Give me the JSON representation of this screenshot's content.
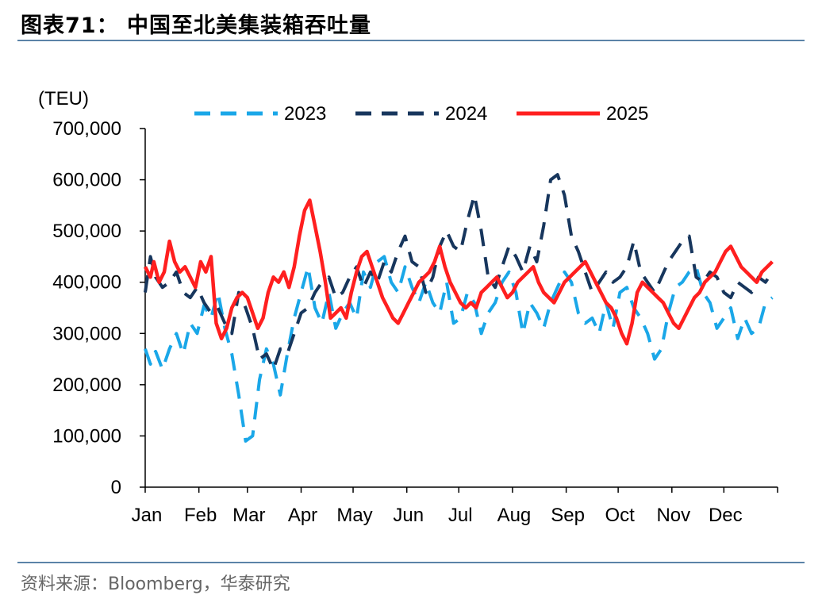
{
  "title": "图表71：  中国至北美集装箱吞吐量",
  "source": "资料来源：Bloomberg，华泰研究",
  "colors": {
    "2023": "#1aa7e8",
    "2024": "#17365d",
    "2025": "#ff1f1f",
    "rule": "#5b83a8"
  },
  "chart_data": {
    "type": "line",
    "title": "",
    "ylabel": "(TEU)",
    "xlabel": "",
    "ylim": [
      0,
      700000
    ],
    "y_ticks": [
      "0",
      "100,000",
      "200,000",
      "300,000",
      "400,000",
      "500,000",
      "600,000",
      "700,000"
    ],
    "x_ticks": [
      "Jan",
      "Feb",
      "Mar",
      "Apr",
      "May",
      "Jun",
      "Jul",
      "Aug",
      "Sep",
      "Oct",
      "Nov",
      "Dec"
    ],
    "legend_position": "top",
    "x_unit": "day of year (0-365)",
    "series": [
      {
        "name": "2023",
        "style": "dashed",
        "x": [
          0,
          3,
          6,
          10,
          14,
          18,
          22,
          26,
          30,
          34,
          38,
          42,
          46,
          50,
          54,
          58,
          62,
          66,
          70,
          74,
          78,
          82,
          86,
          90,
          94,
          98,
          102,
          106,
          110,
          114,
          118,
          122,
          126,
          130,
          134,
          138,
          142,
          146,
          150,
          154,
          158,
          162,
          166,
          170,
          174,
          178,
          182,
          186,
          190,
          194,
          198,
          202,
          206,
          210,
          214,
          218,
          222,
          226,
          230,
          234,
          238,
          242,
          246,
          250,
          254,
          258,
          262,
          266,
          270,
          274,
          278,
          282,
          286,
          290,
          294,
          298,
          302,
          306,
          310,
          314,
          318,
          322,
          326,
          330,
          334,
          338,
          342,
          346,
          350,
          354,
          358,
          362
        ],
        "values": [
          270000,
          240000,
          265000,
          230000,
          270000,
          300000,
          260000,
          320000,
          300000,
          355000,
          330000,
          380000,
          310000,
          260000,
          180000,
          90000,
          100000,
          210000,
          270000,
          240000,
          180000,
          260000,
          330000,
          380000,
          430000,
          350000,
          320000,
          380000,
          310000,
          340000,
          360000,
          330000,
          420000,
          390000,
          440000,
          450000,
          400000,
          380000,
          430000,
          390000,
          360000,
          400000,
          360000,
          340000,
          400000,
          320000,
          330000,
          380000,
          360000,
          300000,
          340000,
          360000,
          400000,
          420000,
          380000,
          300000,
          360000,
          340000,
          310000,
          360000,
          390000,
          420000,
          400000,
          340000,
          320000,
          330000,
          300000,
          360000,
          310000,
          380000,
          390000,
          350000,
          330000,
          300000,
          250000,
          270000,
          340000,
          390000,
          400000,
          420000,
          430000,
          380000,
          360000,
          310000,
          330000,
          350000,
          290000,
          330000,
          300000,
          310000,
          360000,
          370000
        ]
      },
      {
        "name": "2024",
        "style": "dashed",
        "x": [
          0,
          3,
          6,
          10,
          14,
          18,
          22,
          26,
          30,
          34,
          38,
          42,
          46,
          50,
          54,
          58,
          62,
          66,
          70,
          74,
          78,
          82,
          86,
          90,
          94,
          98,
          102,
          106,
          110,
          114,
          118,
          122,
          126,
          130,
          134,
          138,
          142,
          146,
          150,
          154,
          158,
          162,
          166,
          170,
          174,
          178,
          182,
          186,
          190,
          194,
          198,
          202,
          206,
          210,
          214,
          218,
          222,
          226,
          230,
          234,
          238,
          242,
          246,
          250,
          254,
          258,
          262,
          266,
          270,
          274,
          278,
          282,
          286,
          290,
          294,
          298,
          302,
          306,
          310,
          314,
          318,
          322,
          326,
          330,
          334,
          338,
          342,
          346,
          350,
          354,
          358,
          362
        ],
        "values": [
          380000,
          450000,
          410000,
          390000,
          400000,
          420000,
          380000,
          370000,
          390000,
          360000,
          340000,
          350000,
          320000,
          300000,
          380000,
          350000,
          310000,
          250000,
          260000,
          230000,
          270000,
          260000,
          300000,
          340000,
          350000,
          380000,
          400000,
          410000,
          370000,
          380000,
          410000,
          430000,
          390000,
          420000,
          400000,
          440000,
          420000,
          460000,
          490000,
          440000,
          430000,
          380000,
          410000,
          470000,
          500000,
          470000,
          460000,
          520000,
          570000,
          500000,
          410000,
          390000,
          430000,
          470000,
          450000,
          420000,
          470000,
          440000,
          510000,
          600000,
          610000,
          570000,
          490000,
          460000,
          420000,
          380000,
          400000,
          420000,
          400000,
          410000,
          430000,
          480000,
          420000,
          400000,
          380000,
          410000,
          440000,
          460000,
          480000,
          490000,
          410000,
          400000,
          420000,
          410000,
          380000,
          370000,
          400000,
          390000,
          380000,
          410000,
          400000,
          420000
        ]
      },
      {
        "name": "2025",
        "style": "solid",
        "x": [
          0,
          3,
          5,
          8,
          11,
          14,
          17,
          20,
          23,
          26,
          29,
          32,
          35,
          38,
          41,
          44,
          47,
          50,
          53,
          56,
          59,
          62,
          65,
          68,
          71,
          74,
          77,
          80,
          83,
          86,
          89,
          92,
          95,
          98,
          101,
          104,
          107,
          110,
          113,
          116,
          119,
          122,
          125,
          128,
          131,
          134,
          137,
          140,
          143,
          146,
          149,
          152,
          155,
          158,
          161,
          164,
          167,
          170,
          173,
          176,
          179,
          182,
          185,
          188,
          191,
          194,
          197,
          200,
          203,
          206,
          209,
          212,
          215,
          218,
          221,
          224,
          227,
          230,
          233,
          236,
          239,
          242,
          245,
          248,
          251,
          254,
          257,
          260,
          263,
          266,
          269,
          272,
          275,
          278,
          281,
          284,
          287,
          290,
          293,
          296,
          299,
          302,
          305,
          308,
          311,
          314,
          317,
          320,
          323,
          326,
          329,
          332,
          335,
          338,
          341,
          344,
          347,
          350,
          353,
          356,
          359,
          362
        ],
        "values": [
          430000,
          410000,
          440000,
          400000,
          420000,
          480000,
          440000,
          420000,
          430000,
          410000,
          390000,
          440000,
          420000,
          450000,
          320000,
          290000,
          310000,
          350000,
          370000,
          380000,
          370000,
          340000,
          310000,
          330000,
          380000,
          410000,
          400000,
          420000,
          390000,
          430000,
          490000,
          540000,
          560000,
          510000,
          460000,
          400000,
          330000,
          340000,
          350000,
          330000,
          380000,
          420000,
          450000,
          460000,
          430000,
          400000,
          370000,
          350000,
          330000,
          320000,
          340000,
          360000,
          380000,
          400000,
          410000,
          420000,
          440000,
          470000,
          430000,
          400000,
          380000,
          360000,
          350000,
          360000,
          350000,
          380000,
          390000,
          400000,
          410000,
          390000,
          370000,
          380000,
          400000,
          410000,
          420000,
          430000,
          400000,
          380000,
          370000,
          360000,
          380000,
          400000,
          410000,
          420000,
          430000,
          440000,
          420000,
          400000,
          380000,
          360000,
          350000,
          330000,
          300000,
          280000,
          320000,
          380000,
          400000,
          390000,
          380000,
          370000,
          360000,
          340000,
          320000,
          310000,
          330000,
          350000,
          370000,
          380000,
          400000,
          410000,
          420000,
          440000,
          460000,
          470000,
          450000,
          430000,
          420000,
          410000,
          400000,
          420000,
          430000,
          440000
        ]
      }
    ]
  }
}
